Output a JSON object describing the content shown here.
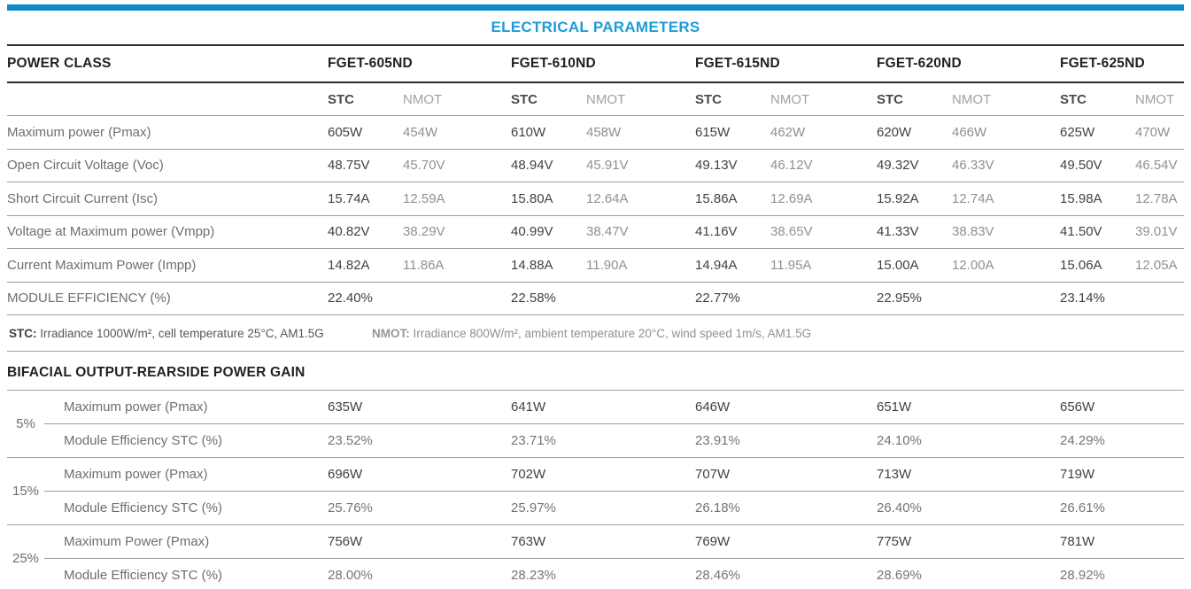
{
  "accent_colors": {
    "bar_blue": "#1088c7",
    "title_blue": "#1d9cd9"
  },
  "title": "ELECTRICAL PARAMETERS",
  "electrical": {
    "power_class_label": "POWER CLASS",
    "models": [
      "FGET-605ND",
      "FGET-610ND",
      "FGET-615ND",
      "FGET-620ND",
      "FGET-625ND"
    ],
    "condition_headers": {
      "stc": "STC",
      "nmot": "NMOT"
    },
    "rows": [
      {
        "label": "Maximum power (Pmax)",
        "values": [
          {
            "stc": "605W",
            "nmot": "454W"
          },
          {
            "stc": "610W",
            "nmot": "458W"
          },
          {
            "stc": "615W",
            "nmot": "462W"
          },
          {
            "stc": "620W",
            "nmot": "466W"
          },
          {
            "stc": "625W",
            "nmot": "470W"
          }
        ]
      },
      {
        "label": "Open Circuit Voltage (Voc)",
        "values": [
          {
            "stc": "48.75V",
            "nmot": "45.70V"
          },
          {
            "stc": "48.94V",
            "nmot": "45.91V"
          },
          {
            "stc": "49.13V",
            "nmot": "46.12V"
          },
          {
            "stc": "49.32V",
            "nmot": "46.33V"
          },
          {
            "stc": "49.50V",
            "nmot": "46.54V"
          }
        ]
      },
      {
        "label": "Short Circuit Current (Isc)",
        "values": [
          {
            "stc": "15.74A",
            "nmot": "12.59A"
          },
          {
            "stc": "15.80A",
            "nmot": "12.64A"
          },
          {
            "stc": "15.86A",
            "nmot": "12.69A"
          },
          {
            "stc": "15.92A",
            "nmot": "12.74A"
          },
          {
            "stc": "15.98A",
            "nmot": "12.78A"
          }
        ]
      },
      {
        "label": "Voltage at Maximum power (Vmpp)",
        "values": [
          {
            "stc": "40.82V",
            "nmot": "38.29V"
          },
          {
            "stc": "40.99V",
            "nmot": "38.47V"
          },
          {
            "stc": "41.16V",
            "nmot": "38.65V"
          },
          {
            "stc": "41.33V",
            "nmot": "38.83V"
          },
          {
            "stc": "41.50V",
            "nmot": "39.01V"
          }
        ]
      },
      {
        "label": "Current Maximum Power (Impp)",
        "values": [
          {
            "stc": "14.82A",
            "nmot": "11.86A"
          },
          {
            "stc": "14.88A",
            "nmot": "11.90A"
          },
          {
            "stc": "14.94A",
            "nmot": "11.95A"
          },
          {
            "stc": "15.00A",
            "nmot": "12.00A"
          },
          {
            "stc": "15.06A",
            "nmot": "12.05A"
          }
        ]
      },
      {
        "label": "MODULE EFFICIENCY (%)",
        "values": [
          {
            "stc": "22.40%",
            "nmot": ""
          },
          {
            "stc": "22.58%",
            "nmot": ""
          },
          {
            "stc": "22.77%",
            "nmot": ""
          },
          {
            "stc": "22.95%",
            "nmot": ""
          },
          {
            "stc": "23.14%",
            "nmot": ""
          }
        ]
      }
    ],
    "footnotes": {
      "stc_label": "STC:",
      "stc_text": " Irradiance 1000W/m², cell temperature 25°C, AM1.5G",
      "nmot_label": "NMOT:",
      "nmot_text": " Irradiance 800W/m², ambient temperature 20°C, wind speed 1m/s, AM1.5G"
    }
  },
  "bifacial": {
    "heading": "BIFACIAL OUTPUT-REARSIDE POWER GAIN",
    "groups": [
      {
        "gain": "5%",
        "pmax_label": "Maximum power (Pmax)",
        "pmax_values": [
          "635W",
          "641W",
          "646W",
          "651W",
          "656W"
        ],
        "eff_label": "Module Efficiency STC (%)",
        "eff_values": [
          "23.52%",
          "23.71%",
          "23.91%",
          "24.10%",
          "24.29%"
        ]
      },
      {
        "gain": "15%",
        "pmax_label": "Maximum power (Pmax)",
        "pmax_values": [
          "696W",
          "702W",
          "707W",
          "713W",
          "719W"
        ],
        "eff_label": "Module Efficiency STC (%)",
        "eff_values": [
          "25.76%",
          "25.97%",
          "26.18%",
          "26.40%",
          "26.61%"
        ]
      },
      {
        "gain": "25%",
        "pmax_label": "Maximum Power (Pmax)",
        "pmax_values": [
          "756W",
          "763W",
          "769W",
          "775W",
          "781W"
        ],
        "eff_label": "Module Efficiency STC (%)",
        "eff_values": [
          "28.00%",
          "28.23%",
          "28.46%",
          "28.69%",
          "28.92%"
        ]
      }
    ]
  }
}
